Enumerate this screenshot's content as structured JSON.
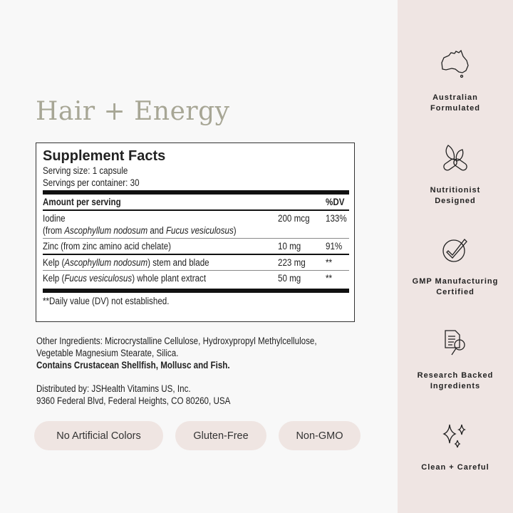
{
  "title": "Hair + Energy",
  "facts": {
    "heading": "Supplement Facts",
    "serving_size": "Serving size: 1 capsule",
    "servings": "Servings per container: 30",
    "amount_header": "Amount per serving",
    "dv_header": "%DV",
    "rows": [
      {
        "name": "Iodine",
        "sub_pre": "(from ",
        "sub_i1": "Ascophyllum nodosum",
        "sub_mid": " and ",
        "sub_i2": "Fucus vesiculosus",
        "sub_post": ")",
        "amount": "200 mcg",
        "dv": "133%"
      },
      {
        "name": "Zinc (from zinc amino acid chelate)",
        "amount": "10 mg",
        "dv": "91%"
      },
      {
        "pre": "Kelp (",
        "ital": "Ascophyllum nodosum",
        "post": ") stem and blade",
        "amount": "223 mg",
        "dv": "**"
      },
      {
        "pre": "Kelp (",
        "ital": "Fucus vesiculosus",
        "post": ") whole plant extract",
        "amount": "50 mg",
        "dv": "**"
      }
    ],
    "footnote": "**Daily value (DV) not established."
  },
  "other_ingredients": [
    "Other Ingredients: Microcrystalline Cellulose, Hydroxypropyl Methylcellulose,",
    "Vegetable Magnesium Stearate, Silica."
  ],
  "allergens": "Contains Crustacean Shellfish, Mollusc and Fish.",
  "distributor": [
    "Distributed by: JSHealth Vitamins US, Inc.",
    "9360 Federal Blvd, Federal Heights, CO 80260, USA"
  ],
  "badges": [
    "No Artificial Colors",
    "Gluten-Free",
    "Non-GMO"
  ],
  "features": [
    {
      "icon": "australia-icon",
      "line1": "Australian",
      "line2": "Formulated"
    },
    {
      "icon": "leaf-capsule-icon",
      "line1": "Nutritionist",
      "line2": "Designed"
    },
    {
      "icon": "check-circle-icon",
      "line1": "GMP Manufacturing",
      "line2": "Certified"
    },
    {
      "icon": "document-search-icon",
      "line1": "Research Backed",
      "line2": "Ingredients"
    },
    {
      "icon": "sparkles-icon",
      "line1": "Clean + Careful",
      "line2": ""
    }
  ],
  "colors": {
    "title": "#a7a695",
    "sidebar": "#efe5e3",
    "pill": "#efe5e2"
  }
}
